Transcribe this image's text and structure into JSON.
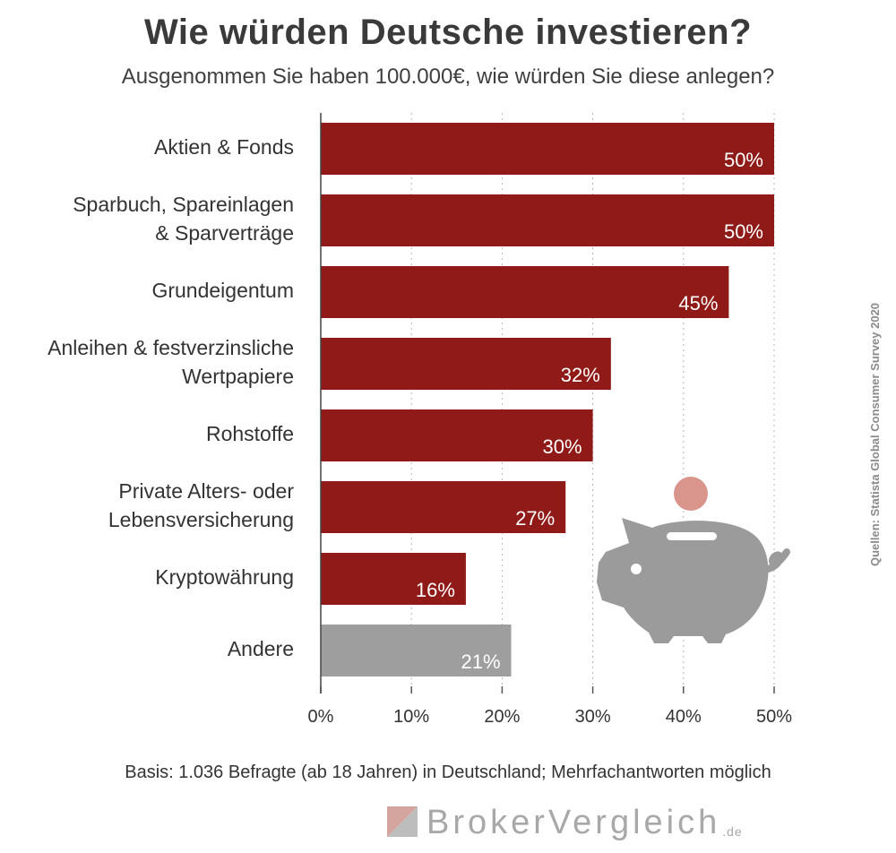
{
  "title": "Wie würden Deutsche investieren?",
  "subtitle": "Ausgenommen Sie haben 100.000€, wie würden Sie diese anlegen?",
  "source": "Quellen: Statista Global Consumer Survey 2020",
  "footnote": "Basis: 1.036 Befragte (ab 18 Jahren) in Deutschland; Mehrfachantworten möglich",
  "logo": {
    "name": "BrokerVergleich",
    "tld": ".de"
  },
  "icons": [
    "piggy-bank-icon",
    "coin-icon"
  ],
  "colors": {
    "bar": "#8f1a17",
    "bar_other": "#9e9e9e",
    "piggy": "#9b9b9b",
    "coin": "#d9948c"
  },
  "chart_data": {
    "type": "bar",
    "orientation": "horizontal",
    "title": "Wie würden Deutsche investieren?",
    "subtitle": "Ausgenommen Sie haben 100.000€, wie würden Sie diese anlegen?",
    "categories": [
      [
        "Aktien & Fonds"
      ],
      [
        "Sparbuch, Spareinlagen",
        "& Sparverträge"
      ],
      [
        "Grundeigentum"
      ],
      [
        "Anleihen & festverzinsliche",
        "Wertpapiere"
      ],
      [
        "Rohstoffe"
      ],
      [
        "Private Alters- oder",
        "Lebensversicherung"
      ],
      [
        "Kryptowährung"
      ],
      [
        "Andere"
      ]
    ],
    "values": [
      50,
      50,
      45,
      32,
      30,
      27,
      16,
      21
    ],
    "value_labels": [
      "50%",
      "50%",
      "45%",
      "32%",
      "30%",
      "27%",
      "16%",
      "21%"
    ],
    "bar_colors": [
      "#8f1a17",
      "#8f1a17",
      "#8f1a17",
      "#8f1a17",
      "#8f1a17",
      "#8f1a17",
      "#8f1a17",
      "#9e9e9e"
    ],
    "xlim": [
      0,
      50
    ],
    "xticks": [
      0,
      10,
      20,
      30,
      40,
      50
    ],
    "xtick_labels": [
      "0%",
      "10%",
      "20%",
      "30%",
      "40%",
      "50%"
    ],
    "grid": "vertical dotted",
    "legend": "none"
  }
}
